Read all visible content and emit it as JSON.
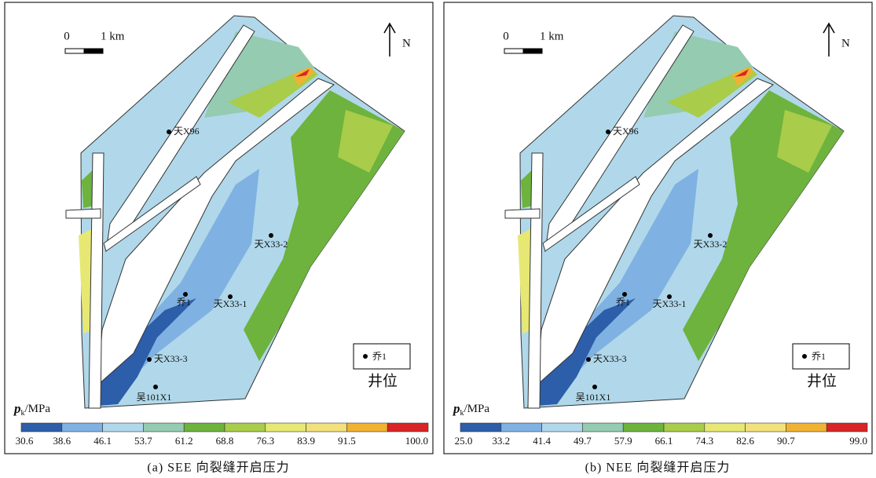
{
  "panels": [
    {
      "scale": {
        "zero": "0",
        "km": "1 km"
      },
      "north": "N",
      "wells": [
        "天X96",
        "天X33-2",
        "天X33-1",
        "乔1",
        "天X33-3",
        "吴101X1"
      ],
      "legend": {
        "symbol_label": "乔1",
        "title": "井位"
      },
      "colorbar": {
        "symbol": "p",
        "subscript": "k",
        "unit": "/MPa",
        "ticks": [
          "30.6",
          "38.6",
          "46.1",
          "53.7",
          "61.2",
          "68.8",
          "76.3",
          "83.9",
          "91.5",
          "100.0"
        ]
      },
      "caption": "(a) SEE 向裂缝开启压力"
    },
    {
      "scale": {
        "zero": "0",
        "km": "1 km"
      },
      "north": "N",
      "wells": [
        "天X96",
        "天X33-2",
        "天X33-1",
        "乔1",
        "天X33-3",
        "吴101X1"
      ],
      "legend": {
        "symbol_label": "乔1",
        "title": "井位"
      },
      "colorbar": {
        "symbol": "p",
        "subscript": "k",
        "unit": "/MPa",
        "ticks": [
          "25.0",
          "33.2",
          "41.4",
          "49.7",
          "57.9",
          "66.1",
          "74.3",
          "82.6",
          "90.7",
          "99.0"
        ]
      },
      "caption": "(b) NEE 向裂缝开启压力"
    }
  ]
}
